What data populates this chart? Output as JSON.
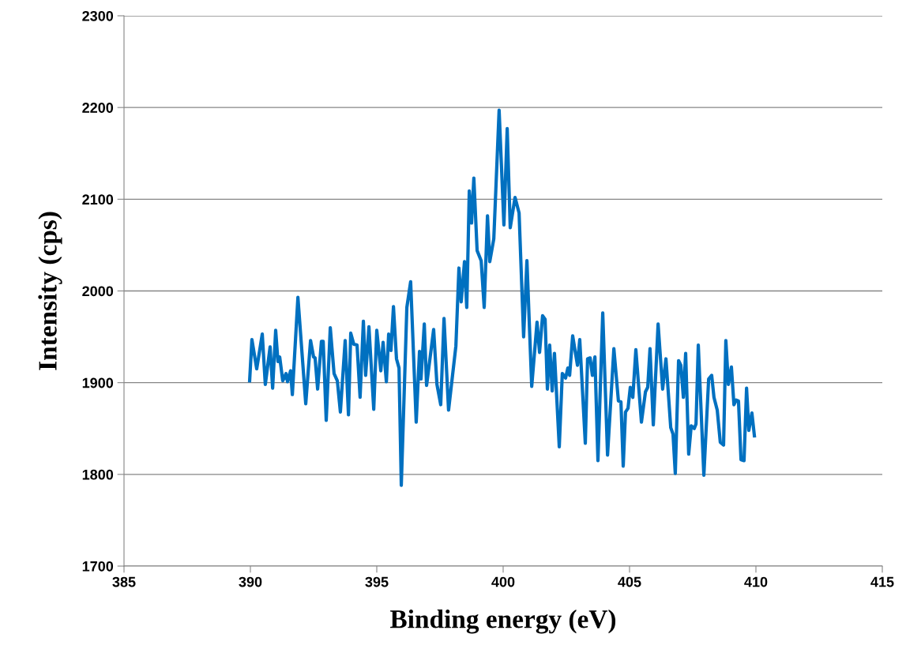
{
  "chart_data": {
    "type": "line",
    "xlabel": "Binding energy (eV)",
    "ylabel": "Intensity (cps)",
    "xlim": [
      385,
      415
    ],
    "xticks": [
      385,
      390,
      395,
      400,
      405,
      410,
      415
    ],
    "ylim": [
      1700,
      2300
    ],
    "yticks": [
      1700,
      1800,
      1900,
      2000,
      2100,
      2200,
      2300
    ],
    "grid": "y",
    "legend": false,
    "marker": "none",
    "line_style": "solid",
    "series": [
      {
        "color": "#0070c0",
        "x": [
          389.97,
          390.06,
          390.25,
          390.47,
          390.59,
          390.78,
          390.88,
          391.0,
          391.09,
          391.16,
          391.28,
          391.41,
          391.47,
          391.59,
          391.66,
          391.88,
          392.19,
          392.38,
          392.5,
          392.56,
          392.66,
          392.81,
          392.88,
          393.0,
          393.16,
          393.31,
          393.44,
          393.56,
          393.75,
          393.88,
          393.97,
          394.09,
          394.22,
          394.34,
          394.47,
          394.56,
          394.69,
          394.88,
          395.0,
          395.16,
          395.25,
          395.38,
          395.47,
          395.56,
          395.66,
          395.78,
          395.88,
          395.97,
          396.19,
          396.34,
          396.56,
          396.69,
          396.75,
          396.88,
          396.97,
          397.25,
          397.38,
          397.53,
          397.66,
          397.84,
          398.13,
          398.25,
          398.34,
          398.47,
          398.56,
          398.66,
          398.75,
          398.84,
          398.97,
          399.13,
          399.25,
          399.38,
          399.47,
          399.63,
          399.84,
          400.03,
          400.16,
          400.28,
          400.47,
          400.63,
          400.81,
          400.94,
          401.13,
          401.34,
          401.44,
          401.56,
          401.66,
          401.75,
          401.84,
          401.94,
          402.03,
          402.22,
          402.34,
          402.47,
          402.56,
          402.63,
          402.75,
          402.94,
          403.03,
          403.25,
          403.34,
          403.44,
          403.53,
          403.63,
          403.75,
          403.94,
          404.13,
          404.38,
          404.56,
          404.66,
          404.75,
          404.84,
          404.94,
          405.03,
          405.13,
          405.25,
          405.47,
          405.63,
          405.72,
          405.81,
          405.94,
          406.13,
          406.31,
          406.44,
          406.63,
          406.72,
          406.81,
          406.94,
          407.03,
          407.13,
          407.22,
          407.34,
          407.44,
          407.56,
          407.63,
          407.72,
          407.94,
          408.13,
          408.25,
          408.34,
          408.47,
          408.59,
          408.72,
          408.81,
          408.91,
          409.03,
          409.13,
          409.22,
          409.31,
          409.41,
          409.53,
          409.63,
          409.72,
          409.84,
          409.94
        ],
        "values": [
          1902,
          1947,
          1915,
          1953,
          1898,
          1939,
          1894,
          1957,
          1923,
          1928,
          1902,
          1910,
          1901,
          1913,
          1887,
          1993,
          1877,
          1946,
          1928,
          1927,
          1893,
          1945,
          1945,
          1859,
          1960,
          1910,
          1902,
          1868,
          1946,
          1865,
          1954,
          1942,
          1941,
          1884,
          1967,
          1908,
          1961,
          1871,
          1957,
          1913,
          1944,
          1901,
          1953,
          1935,
          1983,
          1926,
          1916,
          1788,
          1982,
          2010,
          1857,
          1934,
          1904,
          1964,
          1897,
          1958,
          1898,
          1876,
          1970,
          1870,
          1940,
          2025,
          1988,
          2032,
          1982,
          2109,
          2074,
          2123,
          2044,
          2033,
          1982,
          2082,
          2032,
          2057,
          2197,
          2072,
          2177,
          2069,
          2102,
          2085,
          1950,
          2033,
          1896,
          1966,
          1933,
          1973,
          1969,
          1893,
          1941,
          1891,
          1932,
          1830,
          1910,
          1905,
          1916,
          1908,
          1951,
          1919,
          1947,
          1834,
          1926,
          1927,
          1908,
          1928,
          1815,
          1976,
          1821,
          1937,
          1880,
          1879,
          1809,
          1868,
          1872,
          1895,
          1884,
          1936,
          1857,
          1890,
          1895,
          1937,
          1854,
          1964,
          1893,
          1926,
          1851,
          1844,
          1801,
          1924,
          1919,
          1884,
          1932,
          1822,
          1853,
          1850,
          1855,
          1941,
          1799,
          1904,
          1908,
          1884,
          1870,
          1835,
          1832,
          1946,
          1898,
          1917,
          1876,
          1881,
          1880,
          1816,
          1815,
          1894,
          1848,
          1867,
          1842
        ]
      }
    ]
  }
}
